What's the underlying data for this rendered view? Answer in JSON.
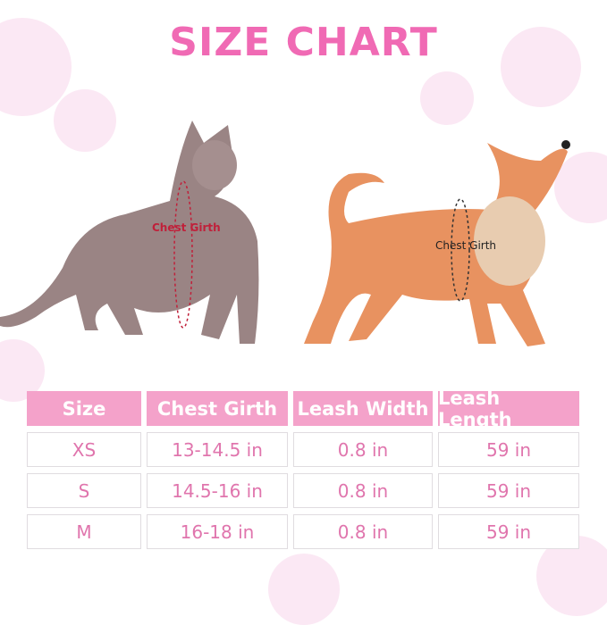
{
  "title": "SIZE CHART",
  "cat_label": "Chest Girth",
  "dog_label": "Chest Girth",
  "colors": {
    "accent": "#f06ab4",
    "header_bg": "#f4a2ca",
    "cell_text": "#e075ad"
  },
  "table": {
    "headers": [
      "Size",
      "Chest Girth",
      "Leash Width",
      "Leash Length"
    ],
    "rows": [
      [
        "XS",
        "13-14.5 in",
        "0.8 in",
        "59 in"
      ],
      [
        "S",
        "14.5-16 in",
        "0.8 in",
        "59 in"
      ],
      [
        "M",
        "16-18 in",
        "0.8 in",
        "59 in"
      ]
    ]
  }
}
